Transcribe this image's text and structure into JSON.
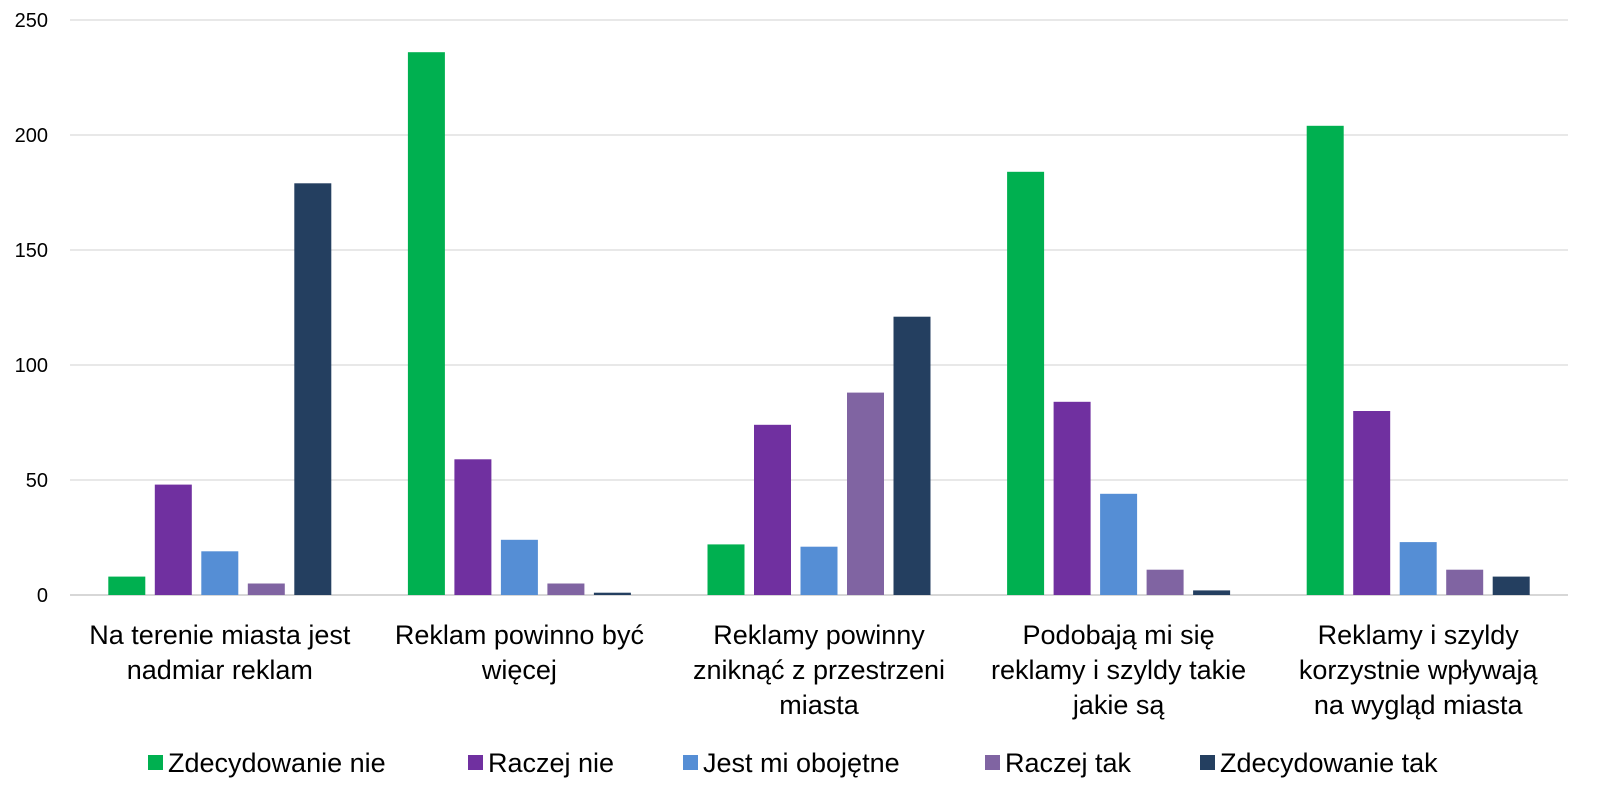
{
  "chart_data": {
    "type": "bar",
    "title": "",
    "xlabel": "",
    "ylabel": "",
    "ylim": [
      0,
      250
    ],
    "yticks": [
      0,
      50,
      100,
      150,
      200,
      250
    ],
    "grid": true,
    "legend_position": "bottom",
    "categories": [
      [
        "Na terenie miasta jest",
        "nadmiar reklam"
      ],
      [
        "Reklam powinno być",
        "więcej"
      ],
      [
        "Reklamy powinny",
        "zniknąć z przestrzeni",
        "miasta"
      ],
      [
        "Podobają mi się",
        "reklamy i szyldy takie",
        "jakie są"
      ],
      [
        "Reklamy i szyldy",
        "korzystnie wpływają",
        "na wygląd miasta"
      ]
    ],
    "series": [
      {
        "name": "Zdecydowanie nie",
        "color": "#00B050",
        "values": [
          8,
          236,
          22,
          184,
          204
        ]
      },
      {
        "name": "Raczej nie",
        "color": "#7030A0",
        "values": [
          48,
          59,
          74,
          84,
          80
        ]
      },
      {
        "name": "Jest mi obojętne",
        "color": "#558ED5",
        "values": [
          19,
          24,
          21,
          44,
          23
        ]
      },
      {
        "name": "Raczej tak",
        "color": "#8064A2",
        "values": [
          5,
          5,
          88,
          11,
          11
        ]
      },
      {
        "name": "Zdecydowanie tak",
        "color": "#243F60",
        "values": [
          179,
          1,
          121,
          2,
          8
        ]
      }
    ]
  }
}
